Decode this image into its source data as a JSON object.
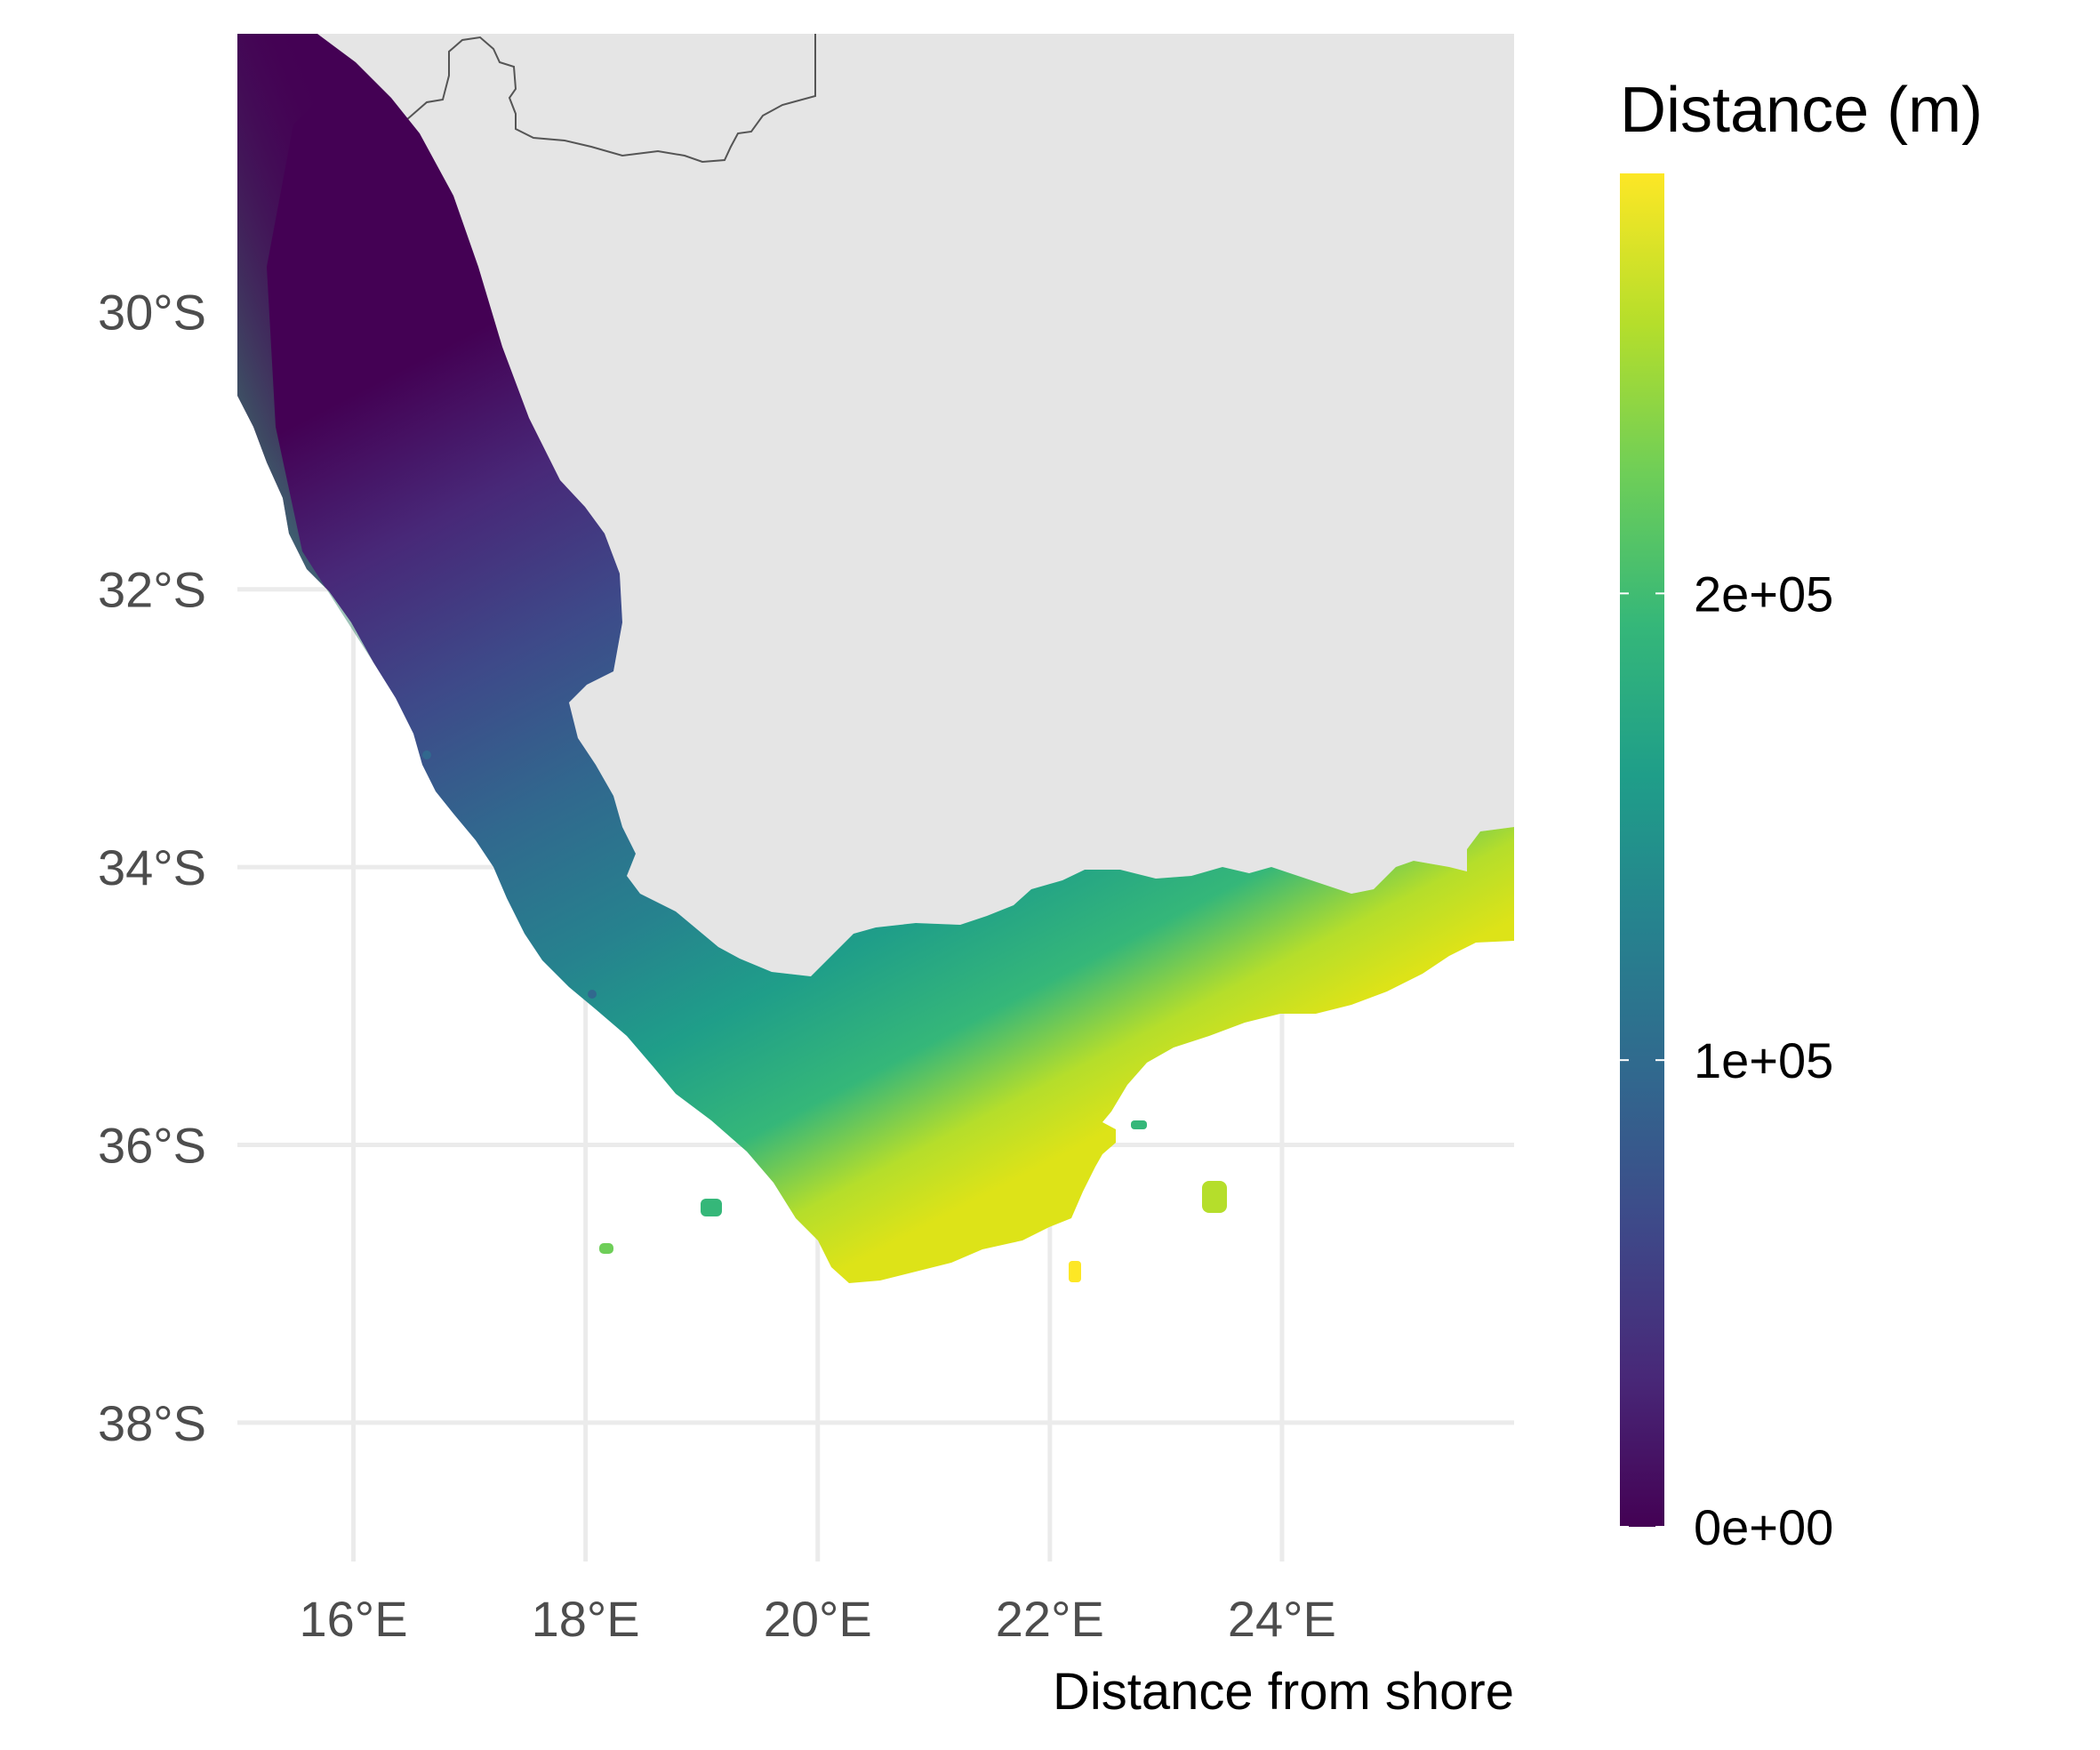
{
  "map": {
    "caption": "Distance from shore",
    "projection": "longitude/latitude",
    "lon_range": [
      15.0,
      26.0
    ],
    "lat_range": [
      -39.0,
      -28.0
    ],
    "x_ticks": [
      {
        "value": 16,
        "label": "16°E"
      },
      {
        "value": 18,
        "label": "18°E"
      },
      {
        "value": 20,
        "label": "20°E"
      },
      {
        "value": 22,
        "label": "22°E"
      },
      {
        "value": 24,
        "label": "24°E"
      }
    ],
    "y_ticks": [
      {
        "value": -30,
        "label": "30°S"
      },
      {
        "value": -32,
        "label": "32°S"
      },
      {
        "value": -34,
        "label": "34°S"
      },
      {
        "value": -36,
        "label": "36°S"
      },
      {
        "value": -38,
        "label": "38°S"
      }
    ],
    "land_color": "#e5e5e5",
    "border_color": "#555555",
    "grid_color": "#ebebeb",
    "grid": true
  },
  "legend": {
    "title": "Distance (m)",
    "type": "continuous colorbar",
    "palette": "viridis",
    "colors": [
      "#440154",
      "#482878",
      "#3e4989",
      "#31688e",
      "#26828e",
      "#1f9e89",
      "#35b779",
      "#6ece58",
      "#b5de2b",
      "#fde725"
    ],
    "range": [
      0,
      290000
    ],
    "ticks": [
      {
        "value": 0,
        "label": "0e+00"
      },
      {
        "value": 100000,
        "label": "1e+05"
      },
      {
        "value": 200000,
        "label": "2e+05"
      }
    ],
    "placement": "right"
  }
}
